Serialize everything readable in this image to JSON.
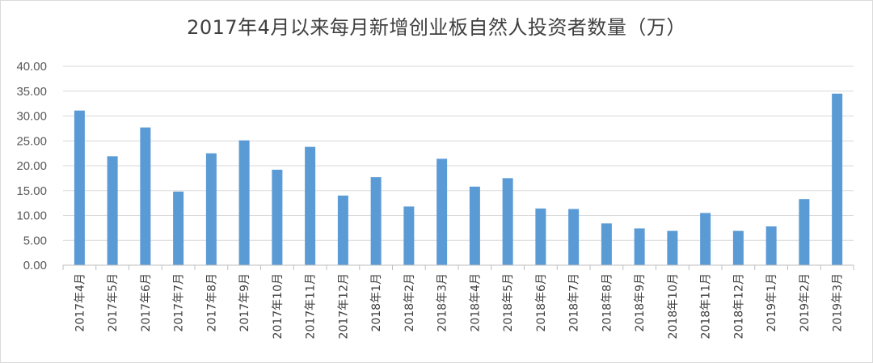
{
  "chart_data": {
    "type": "bar",
    "title": "2017年4月以来每月新增创业板自然人投资者数量（万）",
    "xlabel": "",
    "ylabel": "",
    "ylim": [
      0,
      40
    ],
    "yticks": [
      "0.00",
      "5.00",
      "10.00",
      "15.00",
      "20.00",
      "25.00",
      "30.00",
      "35.00",
      "40.00"
    ],
    "grid": true,
    "bar_color": "#5b9bd5",
    "categories": [
      "2017年4月",
      "2017年5月",
      "2017年6月",
      "2017年7月",
      "2017年8月",
      "2017年9月",
      "2017年10月",
      "2017年11月",
      "2017年12月",
      "2018年1月",
      "2018年2月",
      "2018年3月",
      "2018年4月",
      "2018年5月",
      "2018年6月",
      "2018年7月",
      "2018年8月",
      "2018年9月",
      "2018年10月",
      "2018年11月",
      "2018年12月",
      "2019年1月",
      "2019年2月",
      "2019年3月"
    ],
    "values": [
      31.1,
      21.9,
      27.7,
      14.8,
      22.5,
      25.1,
      19.2,
      23.8,
      14.0,
      17.7,
      11.8,
      21.4,
      15.8,
      17.5,
      11.4,
      11.3,
      8.4,
      7.4,
      6.9,
      10.5,
      6.9,
      7.8,
      13.3,
      34.5
    ]
  }
}
